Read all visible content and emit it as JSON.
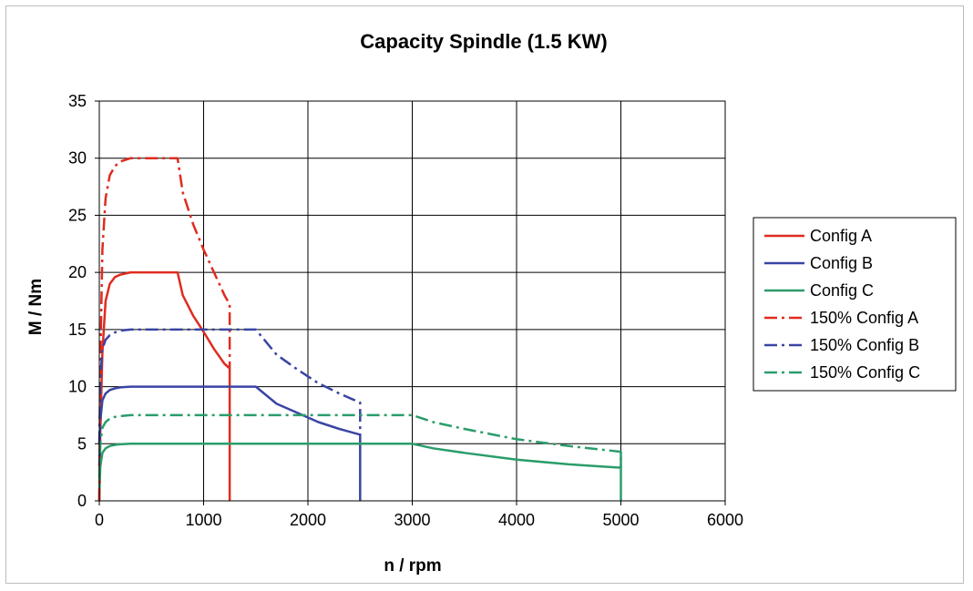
{
  "chart_data": {
    "type": "line",
    "title": "Capacity Spindle (1.5 KW)",
    "xlabel": "n / rpm",
    "ylabel": "M / Nm",
    "xlim": [
      0,
      6000
    ],
    "ylim": [
      0,
      35
    ],
    "xticks": [
      "0",
      "1000",
      "2000",
      "3000",
      "4000",
      "5000",
      "6000"
    ],
    "yticks": [
      "0",
      "5",
      "10",
      "15",
      "20",
      "25",
      "30",
      "35"
    ],
    "grid": true,
    "legend_position": "right",
    "series": [
      {
        "name": "Config A",
        "color": "#e02b1f",
        "style": "solid",
        "x": [
          0,
          10,
          30,
          60,
          100,
          150,
          200,
          300,
          500,
          750,
          800,
          900,
          1000,
          1100,
          1200,
          1250,
          1250
        ],
        "y": [
          0,
          6,
          13,
          17.5,
          19,
          19.6,
          19.8,
          20,
          20,
          20,
          18,
          16.2,
          14.8,
          13.3,
          12,
          11.6,
          0
        ]
      },
      {
        "name": "Config B",
        "color": "#3a45a4",
        "style": "solid",
        "x": [
          0,
          10,
          30,
          60,
          100,
          150,
          200,
          300,
          800,
          1500,
          1700,
          1900,
          2100,
          2300,
          2500,
          2500
        ],
        "y": [
          3,
          7,
          8.8,
          9.4,
          9.7,
          9.85,
          9.93,
          10,
          10,
          10,
          8.5,
          7.7,
          6.9,
          6.3,
          5.8,
          0
        ]
      },
      {
        "name": "Config C",
        "color": "#2a9d6a",
        "style": "solid",
        "x": [
          0,
          10,
          30,
          60,
          100,
          150,
          200,
          300,
          1500,
          3000,
          3200,
          3500,
          4000,
          4500,
          5000,
          5000,
          5000
        ],
        "y": [
          0.5,
          3,
          4.2,
          4.6,
          4.8,
          4.9,
          4.95,
          5,
          5,
          5,
          4.6,
          4.2,
          3.6,
          3.2,
          2.9,
          4.2,
          0
        ]
      },
      {
        "name": "150% Config A",
        "color": "#e02b1f",
        "style": "dashdot",
        "x": [
          0,
          10,
          30,
          60,
          100,
          150,
          200,
          300,
          500,
          750,
          800,
          900,
          1000,
          1100,
          1200,
          1250,
          1250
        ],
        "y": [
          0,
          12,
          22,
          26.5,
          28.5,
          29.3,
          29.7,
          30,
          30,
          30,
          27,
          24.2,
          22,
          20,
          18,
          17.2,
          11.6
        ]
      },
      {
        "name": "150% Config B",
        "color": "#3a45a4",
        "style": "dashdot",
        "x": [
          0,
          10,
          30,
          60,
          100,
          150,
          200,
          300,
          800,
          1500,
          1700,
          1900,
          2100,
          2300,
          2500,
          2500
        ],
        "y": [
          5,
          10.5,
          13.3,
          14.1,
          14.5,
          14.75,
          14.9,
          15,
          15,
          15,
          12.8,
          11.5,
          10.3,
          9.4,
          8.6,
          5.8
        ]
      },
      {
        "name": "150% Config C",
        "color": "#2a9d6a",
        "style": "dashdot",
        "x": [
          0,
          10,
          30,
          60,
          100,
          150,
          200,
          300,
          1500,
          3000,
          3200,
          3500,
          4000,
          4500,
          5000,
          5000
        ],
        "y": [
          2,
          5,
          6.4,
          6.9,
          7.2,
          7.35,
          7.42,
          7.5,
          7.5,
          7.5,
          6.9,
          6.3,
          5.4,
          4.8,
          4.3,
          2.9
        ]
      }
    ]
  }
}
